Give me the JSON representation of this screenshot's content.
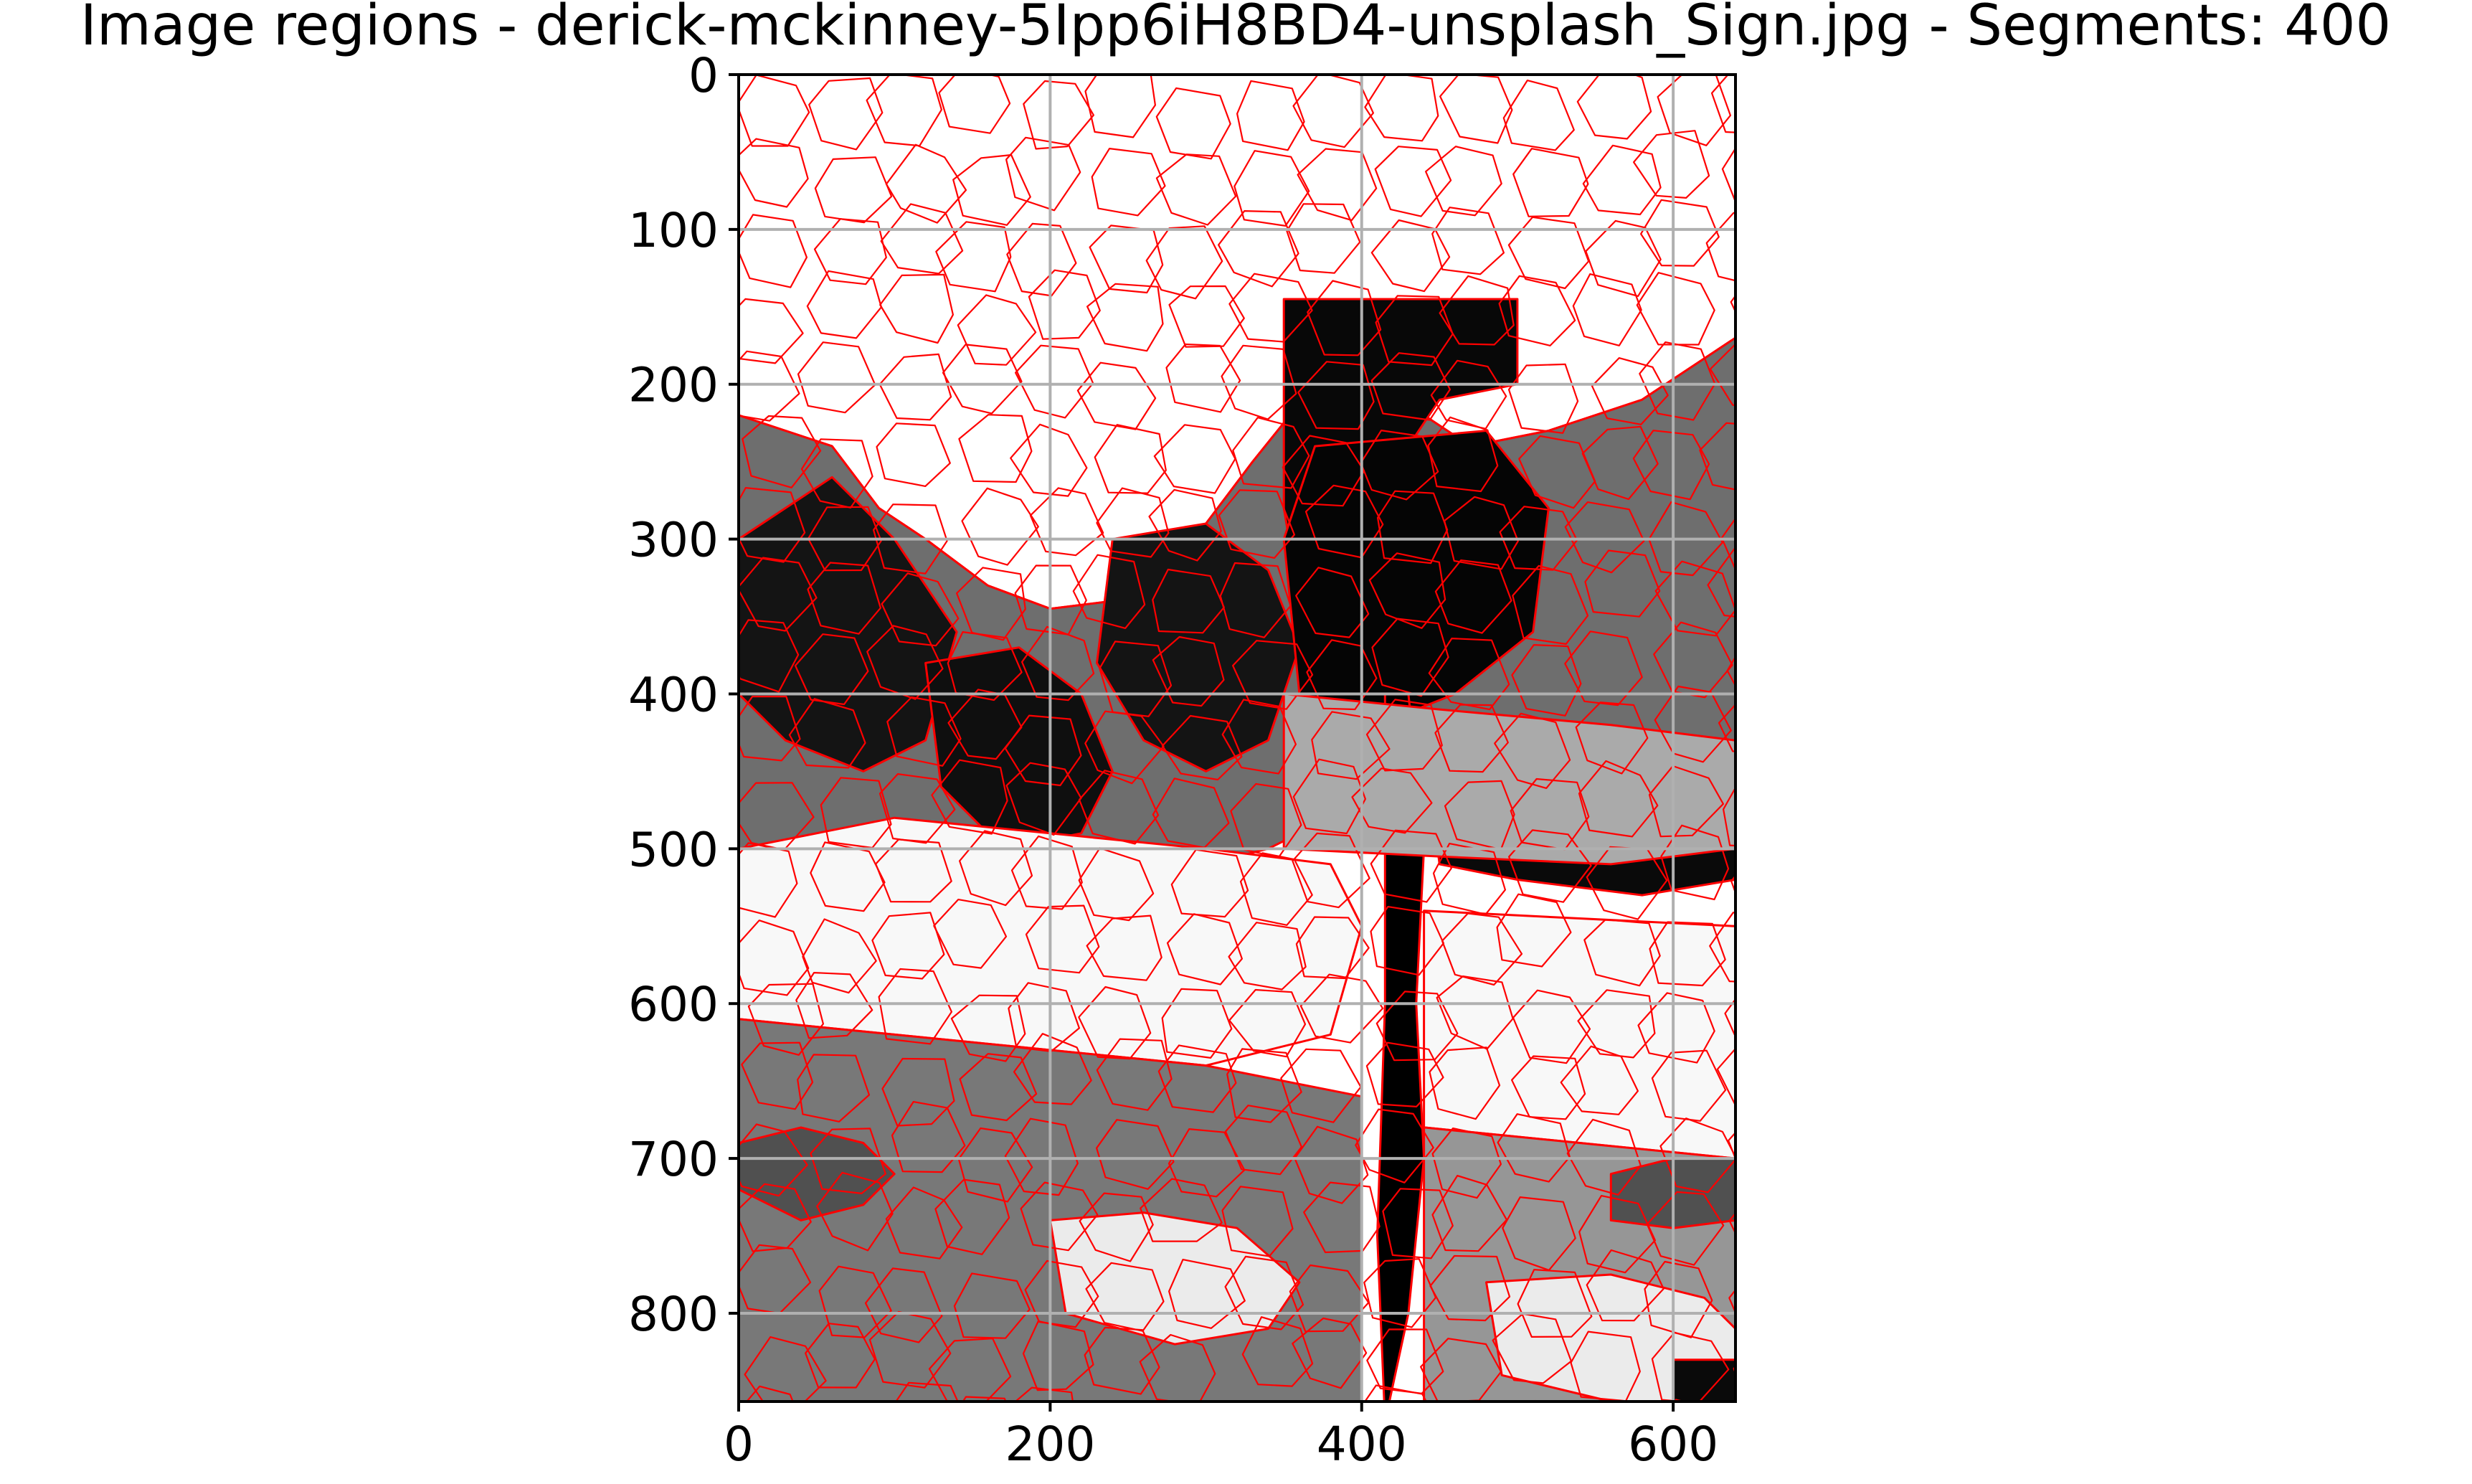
{
  "chart_data": {
    "type": "heatmap",
    "title": "Image regions - derick-mckinney-5Ipp6iH8BD4-unsplash_Sign.jpg - Segments: 400",
    "xlabel": "",
    "ylabel": "",
    "xlim": [
      0,
      640
    ],
    "ylim": [
      857,
      0
    ],
    "xticks": [
      0,
      200,
      400,
      600
    ],
    "yticks": [
      0,
      100,
      200,
      300,
      400,
      500,
      600,
      700,
      800
    ],
    "grid": true,
    "segments": 400,
    "boundary_color": "#ff0000",
    "grid_color": "#b0b0b0",
    "gray_regions": [
      {
        "x": [
          0,
          640,
          640,
          580,
          520,
          470,
          440,
          420,
          370,
          330,
          300,
          270,
          240,
          200,
          160,
          120,
          90,
          60,
          0
        ],
        "y": [
          0,
          0,
          170,
          210,
          230,
          240,
          220,
          170,
          200,
          250,
          290,
          320,
          340,
          345,
          330,
          300,
          280,
          240,
          220
        ],
        "shade": 255
      },
      {
        "x": [
          0,
          60,
          90,
          120,
          160,
          200,
          240,
          270,
          300,
          330,
          370,
          420,
          440,
          470,
          520,
          580,
          640,
          640,
          600,
          560,
          520,
          470,
          440,
          420,
          380,
          340,
          300,
          250,
          200,
          150,
          100,
          50,
          0
        ],
        "y": [
          220,
          240,
          280,
          300,
          330,
          345,
          340,
          320,
          290,
          250,
          200,
          170,
          220,
          240,
          230,
          210,
          170,
          500,
          510,
          500,
          490,
          480,
          470,
          470,
          480,
          500,
          510,
          500,
          490,
          495,
          500,
          510,
          500
        ],
        "shade": 110
      },
      {
        "x": [
          0,
          60,
          100,
          140,
          120,
          80,
          30,
          0
        ],
        "y": [
          300,
          260,
          300,
          360,
          430,
          450,
          430,
          400
        ],
        "shade": 20
      },
      {
        "x": [
          240,
          300,
          340,
          360,
          340,
          300,
          260,
          230
        ],
        "y": [
          300,
          290,
          320,
          370,
          430,
          450,
          430,
          380
        ],
        "shade": 20
      },
      {
        "x": [
          120,
          180,
          220,
          240,
          220,
          170,
          130
        ],
        "y": [
          380,
          370,
          400,
          450,
          490,
          500,
          460
        ],
        "shade": 15
      },
      {
        "x": [
          350,
          500,
          500,
          450,
          430,
          440,
          410,
          440,
          480,
          470,
          400,
          360,
          350
        ],
        "y": [
          145,
          145,
          200,
          210,
          240,
          260,
          280,
          300,
          290,
          340,
          370,
          340,
          280
        ],
        "shade": 8
      },
      {
        "x": [
          370,
          480,
          520,
          510,
          460,
          410,
          360,
          350
        ],
        "y": [
          240,
          230,
          280,
          360,
          400,
          420,
          400,
          300
        ],
        "shade": 5
      },
      {
        "x": [
          415,
          430,
          440,
          435,
          440,
          430,
          415,
          410,
          415
        ],
        "y": [
          400,
          400,
          500,
          600,
          700,
          800,
          870,
          750,
          600
        ],
        "shade": 0
      },
      {
        "x": [
          440,
          520,
          600,
          640,
          640,
          580,
          500,
          450
        ],
        "y": [
          430,
          420,
          425,
          440,
          520,
          530,
          520,
          510
        ],
        "shade": 10
      },
      {
        "x": [
          350,
          450,
          560,
          640,
          640,
          560,
          450,
          350
        ],
        "y": [
          400,
          410,
          420,
          430,
          500,
          510,
          505,
          500
        ],
        "shade": 170
      },
      {
        "x": [
          0,
          100,
          200,
          300,
          380,
          400,
          380,
          300,
          200,
          100,
          0
        ],
        "y": [
          500,
          480,
          490,
          500,
          510,
          550,
          620,
          640,
          630,
          620,
          610
        ],
        "shade": 248
      },
      {
        "x": [
          440,
          540,
          640,
          640,
          540,
          440
        ],
        "y": [
          540,
          545,
          550,
          700,
          690,
          680
        ],
        "shade": 248
      },
      {
        "x": [
          0,
          100,
          200,
          300,
          400,
          400,
          300,
          200,
          100,
          0
        ],
        "y": [
          610,
          620,
          630,
          640,
          660,
          857,
          857,
          857,
          857,
          857
        ],
        "shade": 120
      },
      {
        "x": [
          440,
          540,
          640,
          640,
          540,
          440
        ],
        "y": [
          680,
          690,
          700,
          857,
          857,
          857
        ],
        "shade": 150
      },
      {
        "x": [
          200,
          260,
          320,
          360,
          340,
          280,
          210
        ],
        "y": [
          740,
          735,
          745,
          780,
          810,
          820,
          800
        ],
        "shade": 235
      },
      {
        "x": [
          480,
          560,
          620,
          640,
          640,
          560,
          490
        ],
        "y": [
          780,
          775,
          790,
          810,
          857,
          857,
          840
        ],
        "shade": 235
      },
      {
        "x": [
          0,
          40,
          80,
          100,
          80,
          40,
          0
        ],
        "y": [
          690,
          680,
          690,
          710,
          730,
          740,
          720
        ],
        "shade": 80
      },
      {
        "x": [
          560,
          600,
          640,
          640,
          600,
          560
        ],
        "y": [
          710,
          700,
          700,
          740,
          745,
          740
        ],
        "shade": 80
      },
      {
        "x": [
          600,
          640,
          640,
          600
        ],
        "y": [
          830,
          830,
          857,
          857
        ],
        "shade": 10
      }
    ]
  }
}
